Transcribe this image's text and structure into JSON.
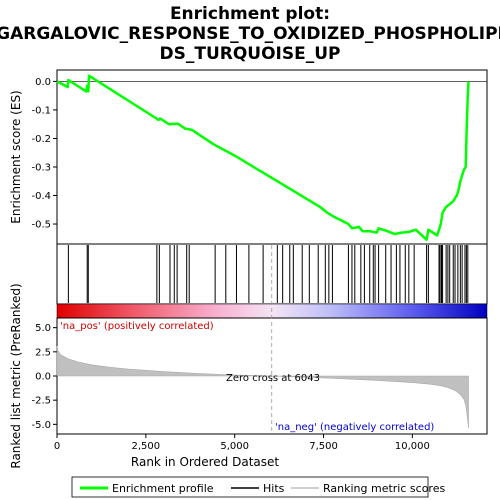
{
  "chart_data": {
    "type": "line",
    "title_lines": [
      "Enrichment plot:",
      "GARGALOVIC_RESPONSE_TO_OXIDIZED_PHOSPHOLIPI",
      "DS_TURQUOISE_UP"
    ],
    "xlabel": "Rank in Ordered Dataset",
    "top_panel": {
      "ylabel": "Enrichment score (ES)",
      "ylim": [
        -0.57,
        0.04
      ],
      "yticks": [
        0.0,
        -0.1,
        -0.2,
        -0.3,
        -0.4,
        -0.5
      ],
      "ytick_labels": [
        "0.0",
        "-0.1",
        "-0.2",
        "-0.3",
        "-0.4",
        "-0.5"
      ],
      "series": [
        {
          "name": "Enrichment profile",
          "color": "#00ff00",
          "x": [
            0,
            300,
            320,
            820,
            850,
            880,
            900,
            2800,
            2850,
            2900,
            3150,
            3400,
            3600,
            3800,
            4400,
            5000,
            5600,
            6200,
            6800,
            7400,
            7600,
            7800,
            8200,
            8300,
            8500,
            8600,
            8800,
            9000,
            9050,
            9300,
            9500,
            9700,
            9900,
            10100,
            10400,
            10450,
            10700,
            10750,
            10800,
            10850,
            10950,
            11050,
            11150,
            11250,
            11300,
            11350,
            11400,
            11450,
            11500,
            11520,
            11540,
            11560,
            11580
          ],
          "y": [
            0.0,
            -0.02,
            0.005,
            -0.035,
            -0.015,
            -0.035,
            0.02,
            -0.13,
            -0.135,
            -0.13,
            -0.15,
            -0.148,
            -0.165,
            -0.17,
            -0.22,
            -0.26,
            -0.305,
            -0.35,
            -0.395,
            -0.44,
            -0.46,
            -0.475,
            -0.5,
            -0.515,
            -0.51,
            -0.525,
            -0.525,
            -0.53,
            -0.515,
            -0.525,
            -0.535,
            -0.53,
            -0.528,
            -0.52,
            -0.555,
            -0.52,
            -0.54,
            -0.52,
            -0.5,
            -0.46,
            -0.44,
            -0.43,
            -0.42,
            -0.4,
            -0.38,
            -0.35,
            -0.33,
            -0.31,
            -0.3,
            -0.2,
            -0.12,
            -0.05,
            0.0
          ]
        }
      ]
    },
    "hits_panel": {
      "name": "Hits",
      "positions": [
        320,
        850,
        880,
        2810,
        2880,
        3180,
        3300,
        3380,
        3650,
        3720,
        4450,
        4750,
        5050,
        5400,
        5800,
        6200,
        6350,
        6550,
        6650,
        6900,
        7100,
        7350,
        7550,
        7650,
        7750,
        8200,
        8300,
        8380,
        8550,
        8650,
        8800,
        8900,
        8950,
        9050,
        9250,
        9400,
        9550,
        9650,
        9800,
        9900,
        10050,
        10400,
        10450,
        10750,
        10780,
        10820,
        10850,
        10950,
        11000,
        11050,
        11150,
        11200,
        11280,
        11350,
        11400,
        11480,
        11520,
        11560
      ]
    },
    "bottom_panel": {
      "ylabel": "Ranked list metric (PreRanked)",
      "ylim": [
        -6,
        6
      ],
      "yticks": [
        5.0,
        2.5,
        0.0,
        -2.5,
        -5.0
      ],
      "ytick_labels": [
        "5.0",
        "2.5",
        "0.0",
        "-2.5",
        "-5.0"
      ],
      "series": [
        {
          "name": "Ranking metric scores",
          "color": "#c0c0c0",
          "x": [
            0,
            30,
            100,
            300,
            600,
            1000,
            1500,
            2000,
            3000,
            4000,
            5000,
            6043,
            7000,
            8000,
            9000,
            10000,
            10500,
            10800,
            11000,
            11200,
            11350,
            11450,
            11500,
            11540,
            11580
          ],
          "y": [
            3.1,
            2.6,
            2.2,
            1.8,
            1.45,
            1.15,
            0.9,
            0.72,
            0.45,
            0.25,
            0.1,
            0.0,
            -0.12,
            -0.28,
            -0.45,
            -0.68,
            -0.85,
            -1.0,
            -1.2,
            -1.5,
            -1.9,
            -2.4,
            -3.0,
            -4.0,
            -5.4
          ]
        }
      ],
      "zero_cross_label": "Zero cross at 6043",
      "zero_cross": 6043,
      "pos_label": "'na_pos' (positively correlated)",
      "neg_label": "'na_neg' (negatively correlated)",
      "pos_color": "#cc0000",
      "neg_color": "#0000cc"
    },
    "xlim": [
      0,
      12100
    ],
    "xticks": [
      0,
      2500,
      5000,
      7500,
      10000
    ],
    "xtick_labels": [
      "0",
      "2,500",
      "5,000",
      "7,500",
      "10,000"
    ],
    "legend": {
      "placement": "bottom",
      "entries": [
        "Enrichment profile",
        "Hits",
        "Ranking metric scores"
      ]
    }
  }
}
